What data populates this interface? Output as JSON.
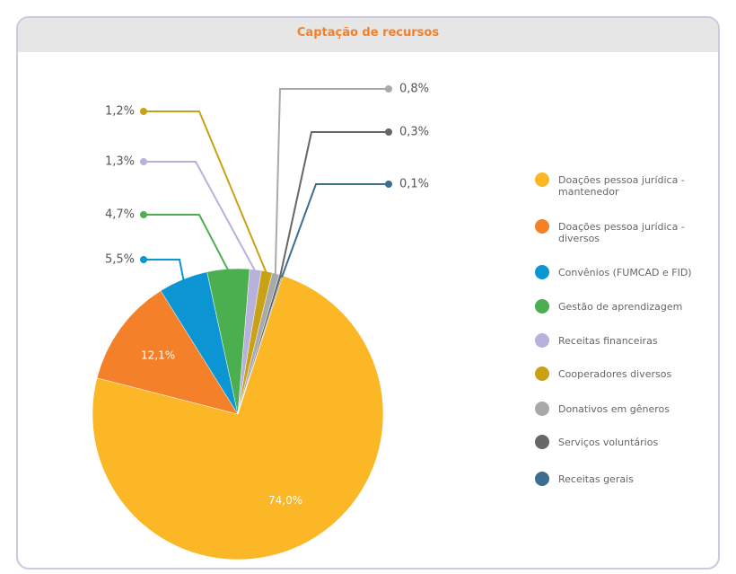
{
  "chart_data": {
    "type": "pie",
    "title": "Captação de recursos",
    "categories": [
      "Doações pessoa jurídica - mantenedor",
      "Doações pessoa jurídica - diversos",
      "Convênios (FUMCAD e FID)",
      "Gestão de aprendizagem",
      "Receitas financeiras",
      "Cooperadores diversos",
      "Donativos em gêneros",
      "Serviços voluntários",
      "Receitas gerais"
    ],
    "values": [
      74.0,
      12.1,
      5.5,
      4.7,
      1.3,
      1.2,
      0.8,
      0.3,
      0.1
    ],
    "value_labels": [
      "74,0%",
      "12,1%",
      "5,5%",
      "4,7%",
      "1,3%",
      "1,2%",
      "0,8%",
      "0,3%",
      "0,1%"
    ],
    "colors": [
      "#fbb725",
      "#f4802a",
      "#0b95d2",
      "#4caf4f",
      "#b7b1dc",
      "#c9a117",
      "#a9a9a9",
      "#666666",
      "#3d6d8f"
    ],
    "legend": "right"
  }
}
